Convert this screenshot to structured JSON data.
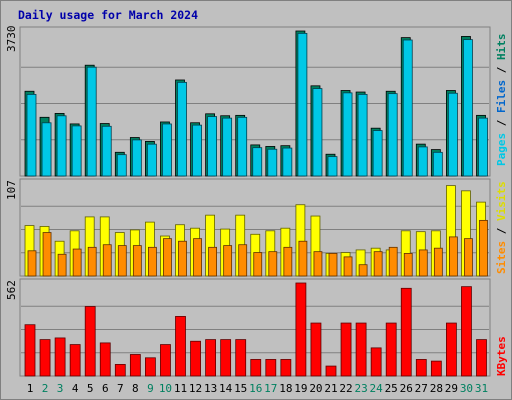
{
  "title": "Daily usage for March 2024",
  "colors": {
    "background": "#c0c0c0",
    "panel": "#c0c0c0",
    "grid": "#808080",
    "title": "#0000aa",
    "hits": "#008060",
    "files": "#00c8e6",
    "pages": "#00c8e6",
    "visits": "#ffff00",
    "sites": "#ff8c00",
    "kbytes": "#ff0000",
    "slash": "#000000",
    "weekend": "#008060",
    "weekday": "#000000"
  },
  "labels": {
    "panel1": [
      {
        "text": "Pages",
        "color": "#00c8e6"
      },
      {
        "text": " / ",
        "color": "#000000"
      },
      {
        "text": "Files",
        "color": "#0066cc"
      },
      {
        "text": " / ",
        "color": "#000000"
      },
      {
        "text": "Hits",
        "color": "#008060"
      }
    ],
    "panel2": [
      {
        "text": "Sites",
        "color": "#ff8c00"
      },
      {
        "text": " / ",
        "color": "#000000"
      },
      {
        "text": "Visits",
        "color": "#dddd00"
      }
    ],
    "panel3": [
      {
        "text": "KBytes",
        "color": "#ff0000"
      }
    ]
  },
  "ymax_labels": {
    "panel1": "3730",
    "panel2": "107",
    "panel3": "562"
  },
  "chart_data": [
    {
      "type": "bar",
      "title": "Daily usage for March 2024",
      "ylabel": "Pages / Files / Hits",
      "ylim": [
        0,
        3730
      ],
      "categories": [
        "1",
        "2",
        "3",
        "4",
        "5",
        "6",
        "7",
        "8",
        "9",
        "10",
        "11",
        "12",
        "13",
        "14",
        "15",
        "16",
        "17",
        "18",
        "19",
        "20",
        "21",
        "22",
        "23",
        "24",
        "25",
        "26",
        "27",
        "28",
        "29",
        "30",
        "31"
      ],
      "weekend_days": [
        "2",
        "3",
        "9",
        "10",
        "16",
        "17",
        "23",
        "24",
        "30",
        "31"
      ],
      "series": [
        {
          "name": "Hits",
          "values": [
            2180,
            1510,
            1610,
            1340,
            2850,
            1350,
            610,
            990,
            890,
            1390,
            2470,
            1370,
            1600,
            1550,
            1560,
            800,
            760,
            780,
            3730,
            2320,
            560,
            2200,
            2160,
            1230,
            2180,
            3560,
            820,
            680,
            2200,
            3590,
            1560
          ]
        },
        {
          "name": "Files",
          "values": [
            2150,
            1420,
            1600,
            1340,
            2850,
            1330,
            600,
            980,
            870,
            1390,
            2460,
            1360,
            1580,
            1540,
            1560,
            780,
            740,
            770,
            3720,
            2300,
            550,
            2190,
            2150,
            1220,
            2170,
            3550,
            800,
            660,
            2180,
            3560,
            1540
          ]
        }
      ]
    },
    {
      "type": "bar",
      "ylabel": "Sites / Visits",
      "ylim": [
        0,
        107
      ],
      "categories": [
        "1",
        "2",
        "3",
        "4",
        "5",
        "6",
        "7",
        "8",
        "9",
        "10",
        "11",
        "12",
        "13",
        "14",
        "15",
        "16",
        "17",
        "18",
        "19",
        "20",
        "21",
        "22",
        "23",
        "24",
        "25",
        "26",
        "27",
        "28",
        "29",
        "30",
        "31"
      ],
      "series": [
        {
          "name": "Visits",
          "values": [
            58,
            57,
            40,
            52,
            68,
            68,
            50,
            53,
            62,
            46,
            59,
            55,
            70,
            54,
            70,
            48,
            52,
            55,
            82,
            69,
            26,
            27,
            30,
            32,
            30,
            52,
            51,
            52,
            104,
            98,
            85
          ]
        },
        {
          "name": "Sites",
          "values": [
            29,
            50,
            25,
            31,
            33,
            36,
            35,
            35,
            33,
            43,
            40,
            43,
            33,
            35,
            36,
            27,
            28,
            33,
            40,
            28,
            26,
            22,
            13,
            28,
            33,
            26,
            30,
            32,
            45,
            43,
            64
          ]
        }
      ]
    },
    {
      "type": "bar",
      "ylabel": "KBytes",
      "ylim": [
        0,
        562
      ],
      "categories": [
        "1",
        "2",
        "3",
        "4",
        "5",
        "6",
        "7",
        "8",
        "9",
        "10",
        "11",
        "12",
        "13",
        "14",
        "15",
        "16",
        "17",
        "18",
        "19",
        "20",
        "21",
        "22",
        "23",
        "24",
        "25",
        "26",
        "27",
        "28",
        "29",
        "30",
        "31"
      ],
      "series": [
        {
          "name": "KBytes",
          "values": [
            310,
            220,
            230,
            190,
            420,
            200,
            70,
            130,
            110,
            190,
            360,
            210,
            220,
            220,
            220,
            100,
            100,
            100,
            562,
            320,
            60,
            320,
            320,
            170,
            320,
            530,
            100,
            90,
            320,
            540,
            220
          ]
        }
      ]
    }
  ]
}
